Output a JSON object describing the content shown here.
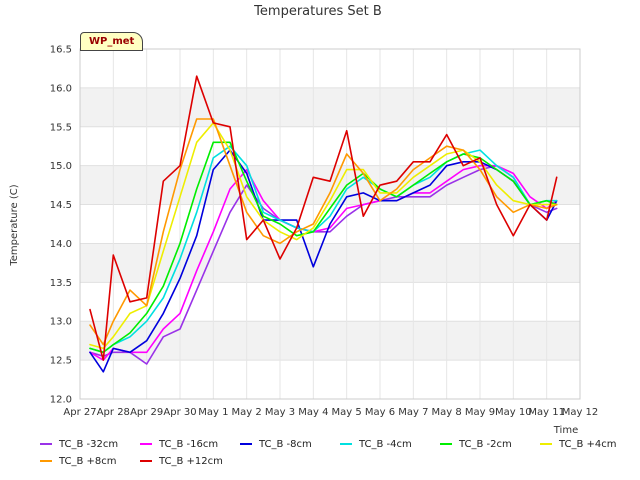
{
  "chart_data": {
    "type": "line",
    "title": "Temperatures Set B",
    "xlabel": "Time",
    "ylabel": "Temperature (C)",
    "badge": "WP_met",
    "ylim": [
      12.0,
      16.5
    ],
    "yticks": [
      12.0,
      12.5,
      13.0,
      13.5,
      14.0,
      14.5,
      15.0,
      15.5,
      16.0,
      16.5
    ],
    "xlim": [
      0,
      15
    ],
    "xticks": [
      {
        "x": 0,
        "label": "Apr 27"
      },
      {
        "x": 1,
        "label": "Apr 28"
      },
      {
        "x": 2,
        "label": "Apr 29"
      },
      {
        "x": 3,
        "label": "Apr 30"
      },
      {
        "x": 4,
        "label": "May 1"
      },
      {
        "x": 5,
        "label": "May 2"
      },
      {
        "x": 6,
        "label": "May 3"
      },
      {
        "x": 7,
        "label": "May 4"
      },
      {
        "x": 8,
        "label": "May 5"
      },
      {
        "x": 9,
        "label": "May 6"
      },
      {
        "x": 10,
        "label": "May 7"
      },
      {
        "x": 11,
        "label": "May 8"
      },
      {
        "x": 12,
        "label": "May 9"
      },
      {
        "x": 13,
        "label": "May 10"
      },
      {
        "x": 14,
        "label": "May 11"
      },
      {
        "x": 15,
        "label": "May 12"
      }
    ],
    "grid": true,
    "background_bands": "alternating grey",
    "legend_placement": "bottom",
    "x": [
      0.3,
      0.7,
      1.0,
      1.5,
      2.0,
      2.5,
      3.0,
      3.5,
      4.0,
      4.5,
      5.0,
      5.5,
      6.0,
      6.5,
      7.0,
      7.5,
      8.0,
      8.5,
      9.0,
      9.5,
      10.0,
      10.5,
      11.0,
      11.5,
      12.0,
      12.5,
      13.0,
      13.5,
      14.0,
      14.3
    ],
    "series": [
      {
        "name": "TC_B -32cm",
        "color": "#9a32e8",
        "values": [
          12.6,
          12.55,
          12.6,
          12.6,
          12.45,
          12.8,
          12.9,
          13.4,
          13.9,
          14.4,
          14.75,
          14.45,
          14.3,
          14.2,
          14.15,
          14.15,
          14.35,
          14.5,
          14.55,
          14.6,
          14.6,
          14.6,
          14.75,
          14.85,
          14.95,
          15.0,
          14.85,
          14.5,
          14.4,
          14.45
        ]
      },
      {
        "name": "TC_B -16cm",
        "color": "#ff00ff",
        "values": [
          12.6,
          12.5,
          12.65,
          12.6,
          12.6,
          12.9,
          13.1,
          13.65,
          14.15,
          14.7,
          14.95,
          14.55,
          14.3,
          14.2,
          14.15,
          14.2,
          14.45,
          14.5,
          14.55,
          14.55,
          14.65,
          14.65,
          14.8,
          14.95,
          15.0,
          15.0,
          14.9,
          14.6,
          14.45,
          14.55
        ]
      },
      {
        "name": "TC_B -8cm",
        "color": "#0000dd",
        "values": [
          12.6,
          12.35,
          12.65,
          12.6,
          12.75,
          13.1,
          13.55,
          14.1,
          14.95,
          15.2,
          14.9,
          14.3,
          14.3,
          14.3,
          13.7,
          14.25,
          14.6,
          14.65,
          14.55,
          14.55,
          14.65,
          14.75,
          15.0,
          15.05,
          15.05,
          14.95,
          14.8,
          14.5,
          14.3,
          14.55
        ]
      },
      {
        "name": "TC_B -4cm",
        "color": "#00e0e0",
        "values": [
          12.65,
          12.6,
          12.7,
          12.8,
          13.0,
          13.3,
          13.8,
          14.4,
          15.1,
          15.25,
          15.0,
          14.4,
          14.3,
          14.2,
          14.15,
          14.35,
          14.7,
          14.85,
          14.7,
          14.6,
          14.75,
          14.85,
          15.05,
          15.15,
          15.2,
          15.0,
          14.85,
          14.5,
          14.55,
          14.55
        ]
      },
      {
        "name": "TC_B -2cm",
        "color": "#00ee00",
        "values": [
          12.65,
          12.6,
          12.7,
          12.85,
          13.1,
          13.45,
          14.0,
          14.7,
          15.3,
          15.3,
          14.8,
          14.35,
          14.25,
          14.1,
          14.15,
          14.45,
          14.75,
          14.9,
          14.7,
          14.6,
          14.75,
          14.9,
          15.05,
          15.15,
          15.1,
          14.95,
          14.8,
          14.5,
          14.55,
          14.5
        ]
      },
      {
        "name": "TC_B +4cm",
        "color": "#eeee00",
        "values": [
          12.7,
          12.65,
          12.8,
          13.1,
          13.2,
          13.9,
          14.6,
          15.3,
          15.55,
          15.2,
          14.6,
          14.3,
          14.15,
          14.05,
          14.2,
          14.55,
          14.95,
          14.95,
          14.65,
          14.65,
          14.85,
          15.0,
          15.15,
          15.2,
          15.05,
          14.75,
          14.55,
          14.5,
          14.5,
          14.5
        ]
      },
      {
        "name": "TC_B +8cm",
        "color": "#ff9900",
        "values": [
          12.95,
          12.7,
          13.0,
          13.4,
          13.2,
          14.15,
          14.95,
          15.6,
          15.6,
          15.0,
          14.4,
          14.1,
          14.0,
          14.15,
          14.25,
          14.65,
          15.15,
          14.9,
          14.55,
          14.7,
          14.95,
          15.1,
          15.25,
          15.2,
          14.95,
          14.6,
          14.4,
          14.5,
          14.45,
          14.5
        ]
      },
      {
        "name": "TC_B +12cm",
        "color": "#dd0000",
        "values": [
          13.15,
          12.5,
          13.85,
          13.25,
          13.3,
          14.8,
          15.0,
          16.15,
          15.55,
          15.5,
          14.05,
          14.3,
          13.8,
          14.2,
          14.85,
          14.8,
          15.45,
          14.35,
          14.75,
          14.8,
          15.05,
          15.05,
          15.4,
          15.0,
          15.1,
          14.5,
          14.1,
          14.5,
          14.3,
          14.85
        ]
      }
    ]
  }
}
